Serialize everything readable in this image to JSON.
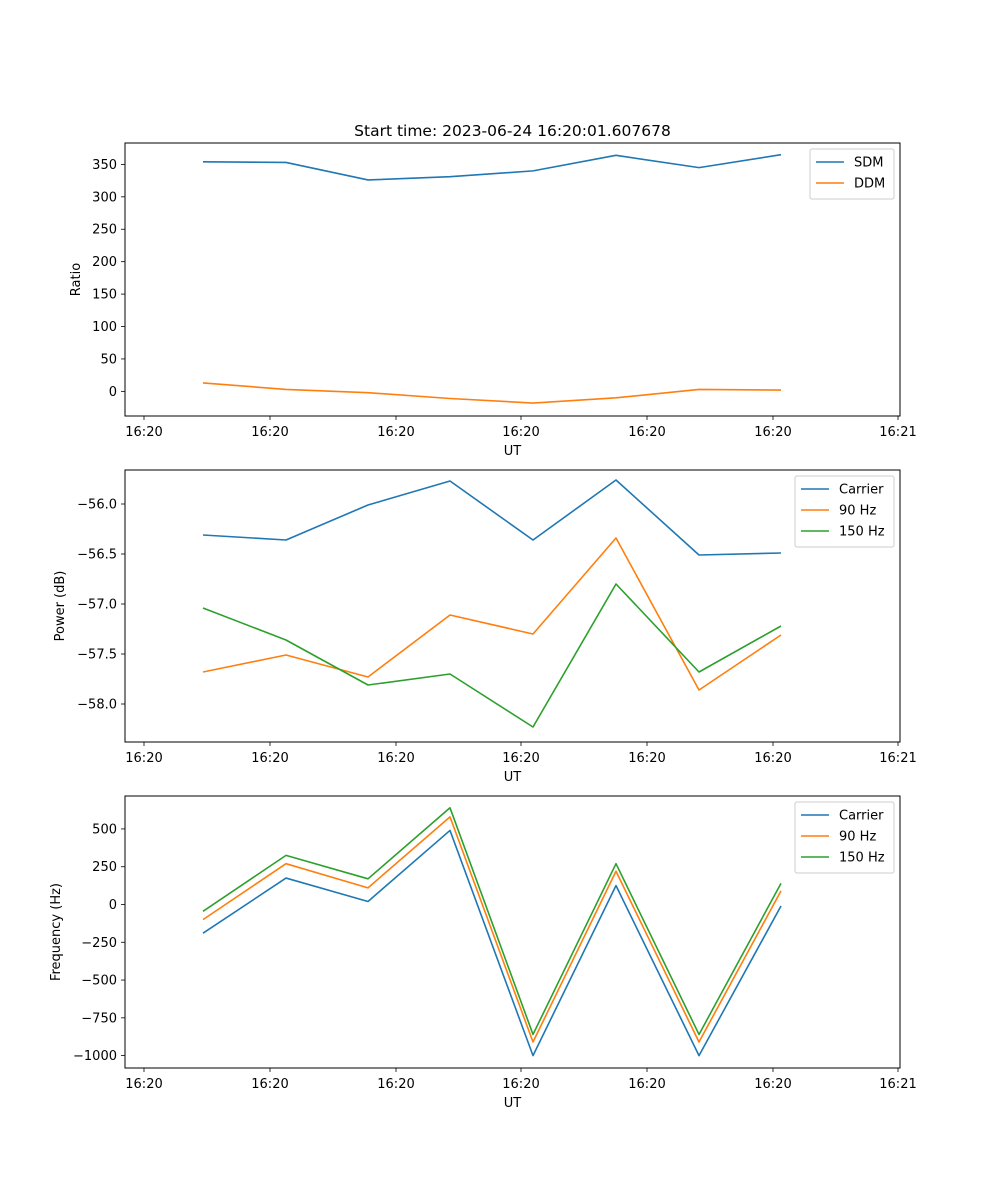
{
  "chart_data": {
    "title": "Start time: 2023-06-24 16:20:01.607678",
    "x_tick_labels": [
      "16:20",
      "16:20",
      "16:20",
      "16:20",
      "16:20",
      "16:20",
      "16:21"
    ],
    "x": [
      "16:20:08.1",
      "16:20:14.6",
      "16:20:21.3",
      "16:20:27.8",
      "16:20:34.4",
      "16:20:41.0",
      "16:20:47.7",
      "16:20:54.1"
    ],
    "plots": [
      {
        "type": "line",
        "xlabel": "UT",
        "ylabel": "Ratio",
        "ylim": [
          -38,
          383
        ],
        "yticks": [
          0,
          50,
          100,
          150,
          200,
          250,
          300,
          350
        ],
        "legend_position": "top-right",
        "series": [
          {
            "name": "SDM",
            "color": "#1f77b4",
            "values": [
              354,
              353,
              326,
              331,
              340,
              364,
              345,
              365
            ]
          },
          {
            "name": "DDM",
            "color": "#ff7f0e",
            "values": [
              13,
              3,
              -2,
              -11,
              -18,
              -10,
              3,
              2
            ]
          }
        ]
      },
      {
        "type": "line",
        "xlabel": "UT",
        "ylabel": "Power (dB)",
        "ylim": [
          -58.38,
          -55.66
        ],
        "yticks": [
          -58.0,
          -57.5,
          -57.0,
          -56.5,
          -56.0
        ],
        "ytick_labels": [
          "−58.0",
          "−57.5",
          "−57.0",
          "−56.5",
          "−56.0"
        ],
        "legend_position": "top-right",
        "series": [
          {
            "name": "Carrier",
            "color": "#1f77b4",
            "values": [
              -56.31,
              -56.36,
              -56.01,
              -55.77,
              -56.36,
              -55.76,
              -56.51,
              -56.49
            ]
          },
          {
            "name": "90 Hz",
            "color": "#ff7f0e",
            "values": [
              -57.68,
              -57.51,
              -57.73,
              -57.11,
              -57.3,
              -56.34,
              -57.86,
              -57.31
            ]
          },
          {
            "name": "150 Hz",
            "color": "#2ca02c",
            "values": [
              -57.04,
              -57.36,
              -57.81,
              -57.7,
              -58.23,
              -56.8,
              -57.68,
              -57.22
            ]
          }
        ]
      },
      {
        "type": "line",
        "xlabel": "UT",
        "ylabel": "Frequency (Hz)",
        "ylim": [
          -1082,
          718
        ],
        "yticks": [
          -1000,
          -750,
          -500,
          -250,
          0,
          250,
          500
        ],
        "ytick_labels": [
          "−1000",
          "−750",
          "−500",
          "−250",
          "0",
          "250",
          "500"
        ],
        "legend_position": "top-right",
        "series": [
          {
            "name": "Carrier",
            "color": "#1f77b4",
            "values": [
              -190,
              175,
              20,
              490,
              -1000,
              125,
              -1000,
              -10
            ]
          },
          {
            "name": "90 Hz",
            "color": "#ff7f0e",
            "values": [
              -100,
              270,
              110,
              580,
              -910,
              220,
              -910,
              90
            ]
          },
          {
            "name": "150 Hz",
            "color": "#2ca02c",
            "values": [
              -45,
              325,
              170,
              640,
              -860,
              270,
              -860,
              140
            ]
          }
        ]
      }
    ]
  }
}
